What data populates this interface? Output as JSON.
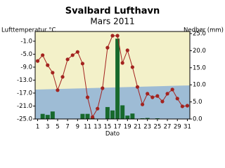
{
  "chart_data": {
    "type": "bar-line",
    "title": "Svalbard Lufthavn",
    "subtitle": "Mars 2011",
    "y_label": "Lufttemperatur °C",
    "y2_label": "Nedbør (mm)",
    "x_label": "Dato",
    "x": [
      1,
      2,
      3,
      4,
      5,
      6,
      7,
      8,
      9,
      10,
      11,
      12,
      13,
      14,
      15,
      16,
      17,
      18,
      19,
      20,
      21,
      22,
      23,
      24,
      25,
      26,
      27,
      28,
      29,
      30,
      31
    ],
    "xlim": [
      0.5,
      31.5
    ],
    "xticks": [
      1,
      3,
      5,
      7,
      9,
      11,
      13,
      15,
      17,
      19,
      21,
      23,
      25,
      27,
      29,
      31
    ],
    "ylim": [
      -25,
      2
    ],
    "yticks": [
      {
        "value": -1,
        "label": "-1.0"
      },
      {
        "value": -5,
        "label": "-5.0"
      },
      {
        "value": -9,
        "label": "-9.0"
      },
      {
        "value": -13,
        "label": "-13.0"
      },
      {
        "value": -17,
        "label": "-17.0"
      },
      {
        "value": -21,
        "label": "-21.0"
      },
      {
        "value": -25,
        "label": "-25.0"
      }
    ],
    "y2lim": [
      0,
      25.6
    ],
    "y2ticks": [
      {
        "value": 0,
        "label": "0.0"
      },
      {
        "value": 5,
        "label": "5.0"
      },
      {
        "value": 10,
        "label": "10.0"
      },
      {
        "value": 15,
        "label": "15.0"
      },
      {
        "value": 20,
        "label": "20.0"
      },
      {
        "value": 25,
        "label": "25.0"
      }
    ],
    "series": [
      {
        "type": "bar",
        "axis": "y2",
        "color": "#17692c",
        "values": [
          0,
          1.5,
          1.2,
          2.2,
          0,
          0,
          0,
          0,
          0,
          1.5,
          1.5,
          0.3,
          0,
          0,
          3.5,
          2.5,
          23.5,
          4,
          1,
          1.6,
          0,
          0.2,
          0.3,
          0,
          0.2,
          0,
          0,
          0,
          0.1,
          0,
          0
        ]
      },
      {
        "type": "line",
        "axis": "y",
        "color": "#a3231f",
        "values": [
          -7.1,
          -5.3,
          -8.4,
          -10.7,
          -16.1,
          -12.0,
          -6.6,
          -5.3,
          -4.3,
          -7.9,
          -18.3,
          -24.4,
          -21.8,
          -15.5,
          -3.0,
          0.7,
          0.7,
          -7.7,
          -3.8,
          -9.0,
          -15.1,
          -20.5,
          -17.2,
          -18.3,
          -17.9,
          -19.6,
          -17.2,
          -15.9,
          -18.7,
          -21.1,
          -20.9
        ]
      }
    ]
  }
}
